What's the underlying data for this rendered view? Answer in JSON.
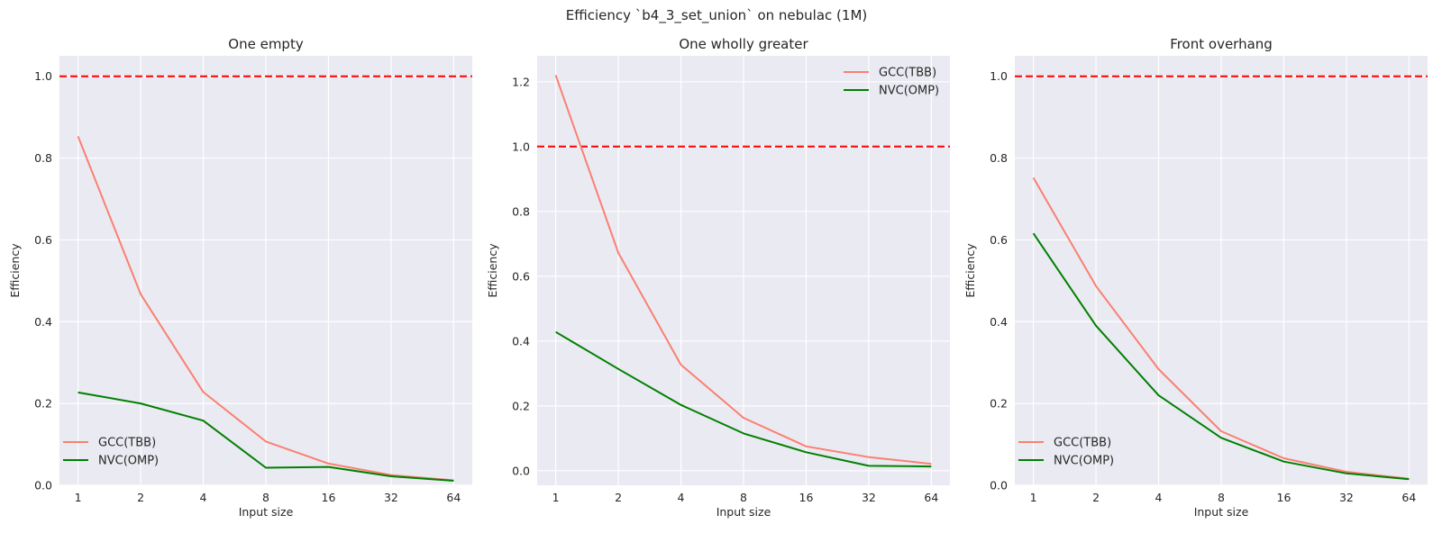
{
  "figure": {
    "suptitle": "Efficiency `b4_3_set_union` on nebulac (1M)"
  },
  "style": {
    "background": "#eaeaf2",
    "grid_color": "#ffffff",
    "reference_color": "#ff0000",
    "series_colors": [
      "#fa8072",
      "#008000"
    ]
  },
  "chart_data": [
    {
      "type": "line",
      "title": "One empty",
      "xlabel": "Input size",
      "ylabel": "Efficiency",
      "categories": [
        "1",
        "2",
        "4",
        "8",
        "16",
        "32",
        "64"
      ],
      "ylim": [
        0,
        1.05
      ],
      "yticks": [
        "0.0",
        "0.2",
        "0.4",
        "0.6",
        "0.8",
        "1.0"
      ],
      "reference_line": 1.0,
      "legend_position": "lower-left",
      "grid": true,
      "series": [
        {
          "name": "GCC(TBB)",
          "values": [
            0.853,
            0.467,
            0.228,
            0.107,
            0.053,
            0.025,
            0.012
          ]
        },
        {
          "name": "NVC(OMP)",
          "values": [
            0.227,
            0.2,
            0.158,
            0.043,
            0.045,
            0.022,
            0.011
          ]
        }
      ]
    },
    {
      "type": "line",
      "title": "One wholly greater",
      "xlabel": "Input size",
      "ylabel": "Efficiency",
      "categories": [
        "1",
        "2",
        "4",
        "8",
        "16",
        "32",
        "64"
      ],
      "ylim": [
        -0.045,
        1.28
      ],
      "yticks": [
        "0.0",
        "0.2",
        "0.4",
        "0.6",
        "0.8",
        "1.0",
        "1.2"
      ],
      "reference_line": 1.0,
      "legend_position": "upper-right",
      "grid": true,
      "series": [
        {
          "name": "GCC(TBB)",
          "values": [
            1.22,
            0.672,
            0.327,
            0.163,
            0.075,
            0.042,
            0.021
          ]
        },
        {
          "name": "NVC(OMP)",
          "values": [
            0.428,
            0.314,
            0.203,
            0.115,
            0.057,
            0.015,
            0.013
          ]
        }
      ]
    },
    {
      "type": "line",
      "title": "Front overhang",
      "xlabel": "Input size",
      "ylabel": "Efficiency",
      "categories": [
        "1",
        "2",
        "4",
        "8",
        "16",
        "32",
        "64"
      ],
      "ylim": [
        0,
        1.05
      ],
      "yticks": [
        "0.0",
        "0.2",
        "0.4",
        "0.6",
        "0.8",
        "1.0"
      ],
      "reference_line": 1.0,
      "legend_position": "lower-left",
      "grid": true,
      "series": [
        {
          "name": "GCC(TBB)",
          "values": [
            0.752,
            0.487,
            0.284,
            0.132,
            0.066,
            0.033,
            0.016
          ]
        },
        {
          "name": "NVC(OMP)",
          "values": [
            0.616,
            0.39,
            0.22,
            0.116,
            0.058,
            0.029,
            0.015
          ]
        }
      ]
    }
  ]
}
